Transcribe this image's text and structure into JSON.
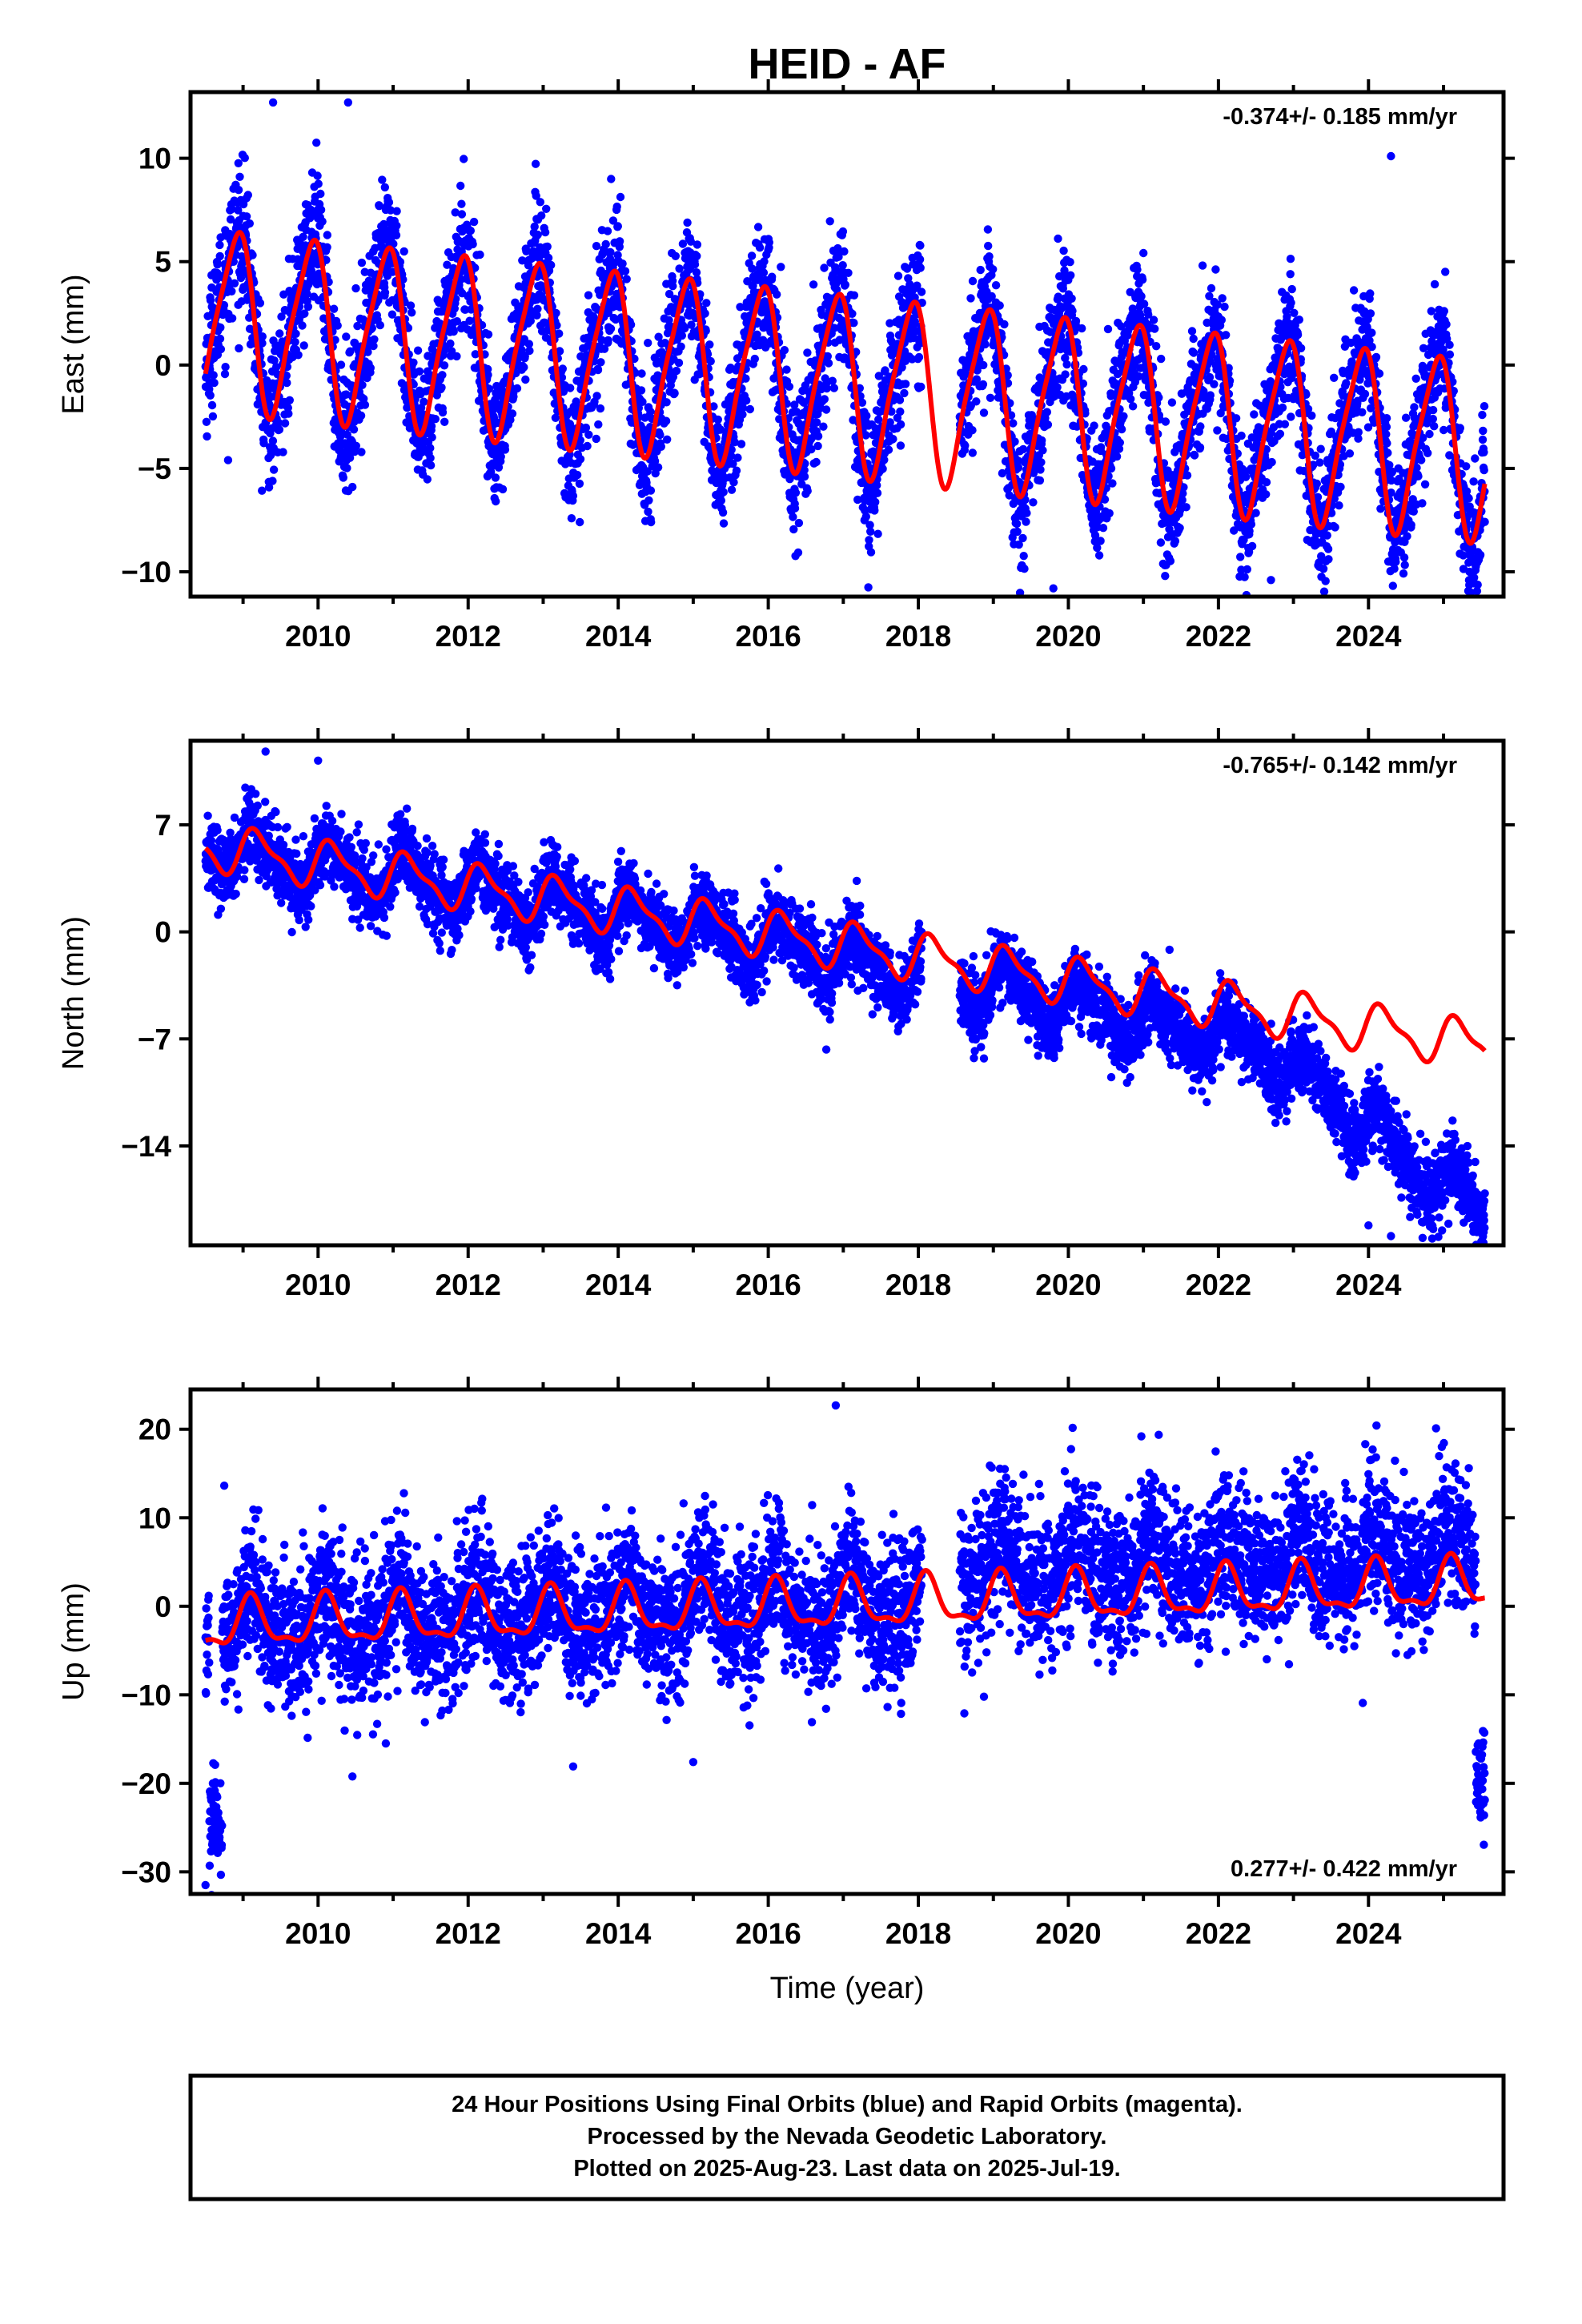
{
  "title": "HEID - AF",
  "footer": {
    "lines": [
      "24 Hour Positions Using Final Orbits (blue) and Rapid Orbits (magenta).",
      "Processed by the Nevada Geodetic Laboratory.",
      "Plotted on 2025-Aug-23. Last data on 2025-Jul-19."
    ]
  },
  "colors": {
    "final_orbits": "#0000ff",
    "model_fit": "#ff0000",
    "axis": "#000000"
  },
  "chart_data": [
    {
      "type": "scatter",
      "ylabel": "East (mm)",
      "xlabel": "",
      "xlim": [
        2008.3,
        2025.8
      ],
      "ylim": [
        -11.2,
        13.2
      ],
      "yticks": [
        10,
        5,
        0,
        -5,
        -10
      ],
      "ytick_labels": [
        "10",
        "5",
        "0",
        "−5",
        "−10"
      ],
      "xticks": [
        2010,
        2012,
        2014,
        2016,
        2018,
        2020,
        2022,
        2024
      ],
      "rate_label": "-0.374+/- 0.185 mm/yr",
      "rate_position": "top-right",
      "series": [
        {
          "kind": "points",
          "start": 2008.5,
          "end": 2025.55,
          "gaps": [
            [
              2018.05,
              2018.55
            ]
          ],
          "offset": 2.3,
          "trend": -0.374,
          "annual_amplitude": 4.2,
          "annual_phase": 2.2,
          "semiannual_amplitude": 0.8,
          "semiannual_phase": 1.0,
          "noise_sd": 1.6,
          "point_count": 5600,
          "outliers": [
            [
              2009.4,
              12.7
            ],
            [
              2010.4,
              12.7
            ],
            [
              2019.8,
              -10.8
            ],
            [
              2022.7,
              -10.4
            ],
            [
              2024.3,
              10.1
            ],
            [
              2008.8,
              -4.6
            ]
          ]
        },
        {
          "kind": "fit_line",
          "start": 2008.5,
          "end": 2025.55,
          "offset": 2.3,
          "trend": -0.374,
          "annual_amplitude": 4.2,
          "annual_phase": 2.2,
          "semiannual_amplitude": 0.8,
          "semiannual_phase": 1.0
        }
      ]
    },
    {
      "type": "scatter",
      "ylabel": "North (mm)",
      "xlabel": "",
      "xlim": [
        2008.3,
        2025.8
      ],
      "ylim": [
        -20.5,
        12.5
      ],
      "yticks": [
        7,
        0,
        -7,
        -14
      ],
      "ytick_labels": [
        "7",
        "0",
        "−7",
        "−14"
      ],
      "xticks": [
        2010,
        2012,
        2014,
        2016,
        2018,
        2020,
        2022,
        2024
      ],
      "rate_label": "-0.765+/- 0.142 mm/yr",
      "rate_position": "top-right",
      "series": [
        {
          "kind": "points",
          "start": 2008.5,
          "end": 2025.55,
          "gaps": [
            [
              2018.05,
              2018.55
            ]
          ],
          "offset": 5.6,
          "trend": -0.765,
          "quadratic": -0.012,
          "late_drop_start": 2022.6,
          "late_drop_rate": -2.6,
          "annual_amplitude": 1.4,
          "annual_phase": 0.3,
          "semiannual_amplitude": 0.5,
          "semiannual_phase": 0.6,
          "noise_sd": 1.2,
          "point_count": 5600,
          "outliers": [
            [
              2009.3,
              11.8
            ],
            [
              2010.0,
              11.2
            ],
            [
              2024.0,
              -19.2
            ],
            [
              2024.3,
              -19.9
            ],
            [
              2023.8,
              -16.0
            ],
            [
              2025.4,
              -17.8
            ]
          ]
        },
        {
          "kind": "fit_line",
          "start": 2008.5,
          "end": 2025.55,
          "offset": 5.6,
          "trend": -0.765,
          "annual_amplitude": 1.4,
          "annual_phase": 0.3,
          "semiannual_amplitude": 0.5,
          "semiannual_phase": 0.6
        }
      ]
    },
    {
      "type": "scatter",
      "ylabel": "Up (mm)",
      "xlabel": "Time (year)",
      "xlim": [
        2008.3,
        2025.8
      ],
      "ylim": [
        -32.5,
        24.5
      ],
      "yticks": [
        20,
        10,
        0,
        -10,
        -20,
        -30
      ],
      "ytick_labels": [
        "20",
        "10",
        "0",
        "−10",
        "−20",
        "−30"
      ],
      "xticks": [
        2010,
        2012,
        2014,
        2016,
        2018,
        2020,
        2022,
        2024
      ],
      "rate_label": "0.277+/- 0.422 mm/yr",
      "rate_position": "bottom-right",
      "series": [
        {
          "kind": "points",
          "start": 2008.5,
          "end": 2025.55,
          "gaps": [
            [
              2018.05,
              2018.55
            ]
          ],
          "offset": -2.2,
          "trend": 0.277,
          "step_at": 2018.55,
          "step_size": 3.4,
          "annual_amplitude": 2.6,
          "annual_phase": 0.9,
          "semiannual_amplitude": 1.0,
          "semiannual_phase": 0.4,
          "noise_sd": 4.0,
          "point_count": 5600,
          "low_segments": [
            [
              2008.55,
              2008.72,
              -24.5
            ],
            [
              2025.43,
              2025.55,
              -20.0
            ]
          ],
          "outliers": [
            [
              2016.9,
              22.7
            ],
            [
              2024.9,
              20.1
            ],
            [
              2008.5,
              -31.5
            ],
            [
              2013.4,
              -18.1
            ],
            [
              2015.0,
              -17.6
            ]
          ]
        },
        {
          "kind": "fit_line",
          "start": 2008.5,
          "end": 2025.55,
          "offset": -2.2,
          "trend": 0.277,
          "annual_amplitude": 2.6,
          "annual_phase": 0.9,
          "semiannual_amplitude": 1.0,
          "semiannual_phase": 0.4
        }
      ]
    }
  ]
}
